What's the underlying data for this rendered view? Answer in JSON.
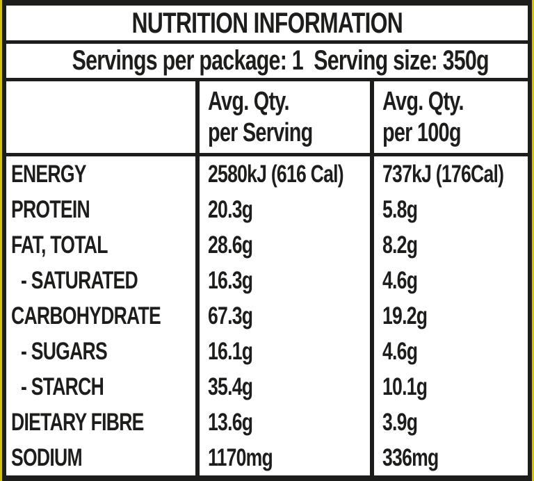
{
  "label": {
    "title": "NUTRITION INFORMATION",
    "servings_line": "Servings per package: 1  Serving size: 350g",
    "columns": {
      "per_serving": {
        "line1": "Avg. Qty.",
        "line2": "per Serving"
      },
      "per_100g": {
        "line1": "Avg. Qty.",
        "line2": "per 100g"
      }
    },
    "rows": [
      {
        "nutrient": "ENERGY",
        "per_serving": "2580kJ (616 Cal)",
        "per_100g": "737kJ (176Cal)",
        "indent": false
      },
      {
        "nutrient": "PROTEIN",
        "per_serving": "20.3g",
        "per_100g": "5.8g",
        "indent": false
      },
      {
        "nutrient": "FAT, TOTAL",
        "per_serving": "28.6g",
        "per_100g": "8.2g",
        "indent": false
      },
      {
        "nutrient": "- SATURATED",
        "per_serving": "16.3g",
        "per_100g": "4.6g",
        "indent": true
      },
      {
        "nutrient": "CARBOHYDRATE",
        "per_serving": "67.3g",
        "per_100g": "19.2g",
        "indent": false
      },
      {
        "nutrient": "- SUGARS",
        "per_serving": "16.1g",
        "per_100g": "4.6g",
        "indent": true
      },
      {
        "nutrient": "- STARCH",
        "per_serving": "35.4g",
        "per_100g": "10.1g",
        "indent": true
      },
      {
        "nutrient": "DIETARY FIBRE",
        "per_serving": "13.6g",
        "per_100g": "3.9g",
        "indent": false
      },
      {
        "nutrient": "SODIUM",
        "per_serving": "1170mg",
        "per_100g": "336mg",
        "indent": false
      }
    ]
  },
  "colors": {
    "package_yellow": "#d2c400",
    "ink": "#1d1d1b",
    "paper": "#ffffff"
  }
}
